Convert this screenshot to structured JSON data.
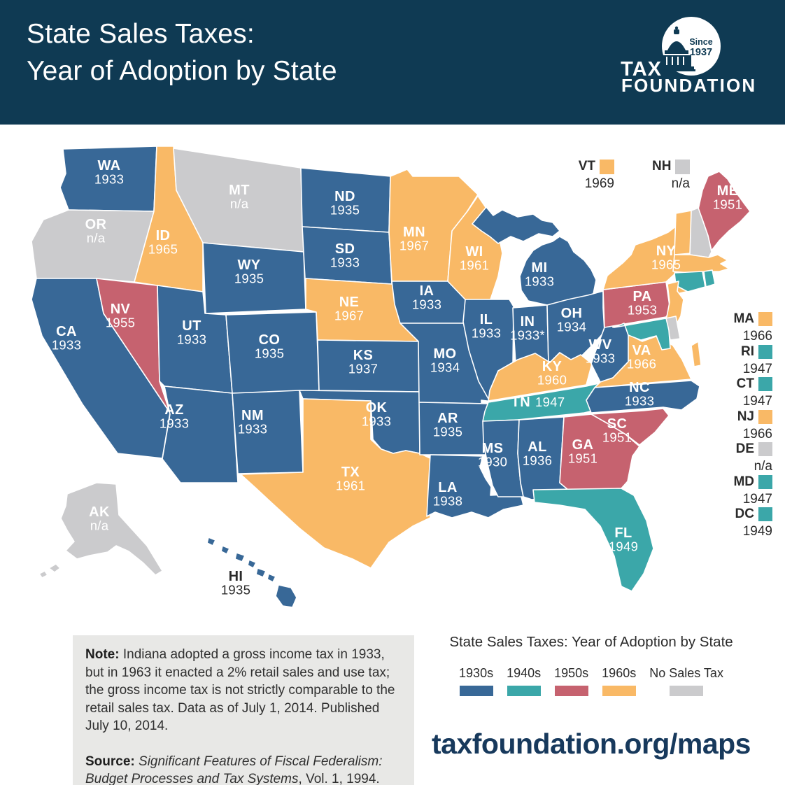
{
  "header": {
    "title_line1": "State Sales Taxes:",
    "title_line2": "Year of Adoption by State",
    "logo": {
      "tax": "TAX",
      "foundation": "FOUNDATION",
      "since_line1": "Since",
      "since_line2": "1937"
    }
  },
  "colors": {
    "1930s": "#386897",
    "1940s": "#3BA7A9",
    "1950s": "#C6626F",
    "1960s": "#F9B966",
    "na": "#CBCBCD"
  },
  "map": {
    "states": [
      {
        "abbr": "WA",
        "year": "1933",
        "category": "1930s"
      },
      {
        "abbr": "OR",
        "year": "n/a",
        "category": "na"
      },
      {
        "abbr": "CA",
        "year": "1933",
        "category": "1930s"
      },
      {
        "abbr": "NV",
        "year": "1955",
        "category": "1950s"
      },
      {
        "abbr": "ID",
        "year": "1965",
        "category": "1960s"
      },
      {
        "abbr": "MT",
        "year": "n/a",
        "category": "na"
      },
      {
        "abbr": "WY",
        "year": "1935",
        "category": "1930s"
      },
      {
        "abbr": "UT",
        "year": "1933",
        "category": "1930s"
      },
      {
        "abbr": "CO",
        "year": "1935",
        "category": "1930s"
      },
      {
        "abbr": "AZ",
        "year": "1933",
        "category": "1930s"
      },
      {
        "abbr": "NM",
        "year": "1933",
        "category": "1930s"
      },
      {
        "abbr": "ND",
        "year": "1935",
        "category": "1930s"
      },
      {
        "abbr": "SD",
        "year": "1933",
        "category": "1930s"
      },
      {
        "abbr": "NE",
        "year": "1967",
        "category": "1960s"
      },
      {
        "abbr": "KS",
        "year": "1937",
        "category": "1930s"
      },
      {
        "abbr": "OK",
        "year": "1933",
        "category": "1930s"
      },
      {
        "abbr": "TX",
        "year": "1961",
        "category": "1960s"
      },
      {
        "abbr": "MN",
        "year": "1967",
        "category": "1960s"
      },
      {
        "abbr": "IA",
        "year": "1933",
        "category": "1930s"
      },
      {
        "abbr": "MO",
        "year": "1934",
        "category": "1930s"
      },
      {
        "abbr": "AR",
        "year": "1935",
        "category": "1930s"
      },
      {
        "abbr": "LA",
        "year": "1938",
        "category": "1930s"
      },
      {
        "abbr": "WI",
        "year": "1961",
        "category": "1960s"
      },
      {
        "abbr": "IL",
        "year": "1933",
        "category": "1930s"
      },
      {
        "abbr": "IN",
        "year": "1933*",
        "category": "1930s"
      },
      {
        "abbr": "MI",
        "year": "1933",
        "category": "1930s"
      },
      {
        "abbr": "OH",
        "year": "1934",
        "category": "1930s"
      },
      {
        "abbr": "KY",
        "year": "1960",
        "category": "1960s"
      },
      {
        "abbr": "TN",
        "year": "1947",
        "category": "1940s"
      },
      {
        "abbr": "MS",
        "year": "1930",
        "category": "1930s"
      },
      {
        "abbr": "AL",
        "year": "1936",
        "category": "1930s"
      },
      {
        "abbr": "GA",
        "year": "1951",
        "category": "1950s"
      },
      {
        "abbr": "FL",
        "year": "1949",
        "category": "1940s"
      },
      {
        "abbr": "WV",
        "year": "1933",
        "category": "1930s"
      },
      {
        "abbr": "VA",
        "year": "1966",
        "category": "1960s"
      },
      {
        "abbr": "NC",
        "year": "1933",
        "category": "1930s"
      },
      {
        "abbr": "SC",
        "year": "1951",
        "category": "1950s"
      },
      {
        "abbr": "PA",
        "year": "1953",
        "category": "1950s"
      },
      {
        "abbr": "NY",
        "year": "1965",
        "category": "1960s"
      },
      {
        "abbr": "ME",
        "year": "1951",
        "category": "1950s"
      },
      {
        "abbr": "VT",
        "year": "1969",
        "category": "1960s"
      },
      {
        "abbr": "NH",
        "year": "n/a",
        "category": "na"
      },
      {
        "abbr": "MA",
        "year": "1966",
        "category": "1960s"
      },
      {
        "abbr": "RI",
        "year": "1947",
        "category": "1940s"
      },
      {
        "abbr": "CT",
        "year": "1947",
        "category": "1940s"
      },
      {
        "abbr": "NJ",
        "year": "1966",
        "category": "1960s"
      },
      {
        "abbr": "DE",
        "year": "n/a",
        "category": "na"
      },
      {
        "abbr": "MD",
        "year": "1947",
        "category": "1940s"
      },
      {
        "abbr": "AK",
        "year": "n/a",
        "category": "na"
      },
      {
        "abbr": "HI",
        "year": "1935",
        "category": "1930s"
      },
      {
        "abbr": "DC",
        "year": "1949",
        "category": "1940s"
      }
    ]
  },
  "map_legend_top": [
    {
      "abbr": "VT",
      "year": "1969",
      "category": "1960s"
    },
    {
      "abbr": "NH",
      "year": "n/a",
      "category": "na"
    }
  ],
  "map_legend_right": [
    {
      "abbr": "MA",
      "year": "1966",
      "category": "1960s"
    },
    {
      "abbr": "RI",
      "year": "1947",
      "category": "1940s"
    },
    {
      "abbr": "CT",
      "year": "1947",
      "category": "1940s"
    },
    {
      "abbr": "NJ",
      "year": "1966",
      "category": "1960s"
    },
    {
      "abbr": "DE",
      "year": "n/a",
      "category": "na"
    },
    {
      "abbr": "MD",
      "year": "1947",
      "category": "1940s"
    },
    {
      "abbr": "DC",
      "year": "1949",
      "category": "1940s"
    }
  ],
  "note": {
    "label": "Note:",
    "text": "Indiana adopted a gross income tax in 1933, but in 1963 it enacted a 2% retail sales and use tax; the gross income tax is not strictly comparable to the retail sales tax. Data as of July 1, 2014. Published July 10, 2014.",
    "source_label": "Source:",
    "source_title": "Significant Features of Fiscal Federalism: Budget Processes and Tax Systems",
    "source_suffix": ", Vol. 1, 1994."
  },
  "legend": {
    "title": "State Sales Taxes: Year of Adoption by State",
    "items": [
      {
        "label": "1930s",
        "category": "1930s"
      },
      {
        "label": "1940s",
        "category": "1940s"
      },
      {
        "label": "1950s",
        "category": "1950s"
      },
      {
        "label": "1960s",
        "category": "1960s"
      },
      {
        "label": "No Sales Tax",
        "category": "na"
      }
    ]
  },
  "footer": {
    "url": "taxfoundation.org/maps"
  }
}
